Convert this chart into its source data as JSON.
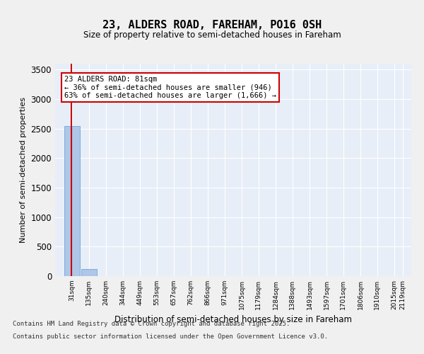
{
  "title_line1": "23, ALDERS ROAD, FAREHAM, PO16 0SH",
  "title_line2": "Size of property relative to semi-detached houses in Fareham",
  "xlabel": "Distribution of semi-detached houses by size in Fareham",
  "ylabel": "Number of semi-detached properties",
  "bins": [
    "31sqm",
    "135sqm",
    "240sqm",
    "344sqm",
    "449sqm",
    "553sqm",
    "657sqm",
    "762sqm",
    "866sqm",
    "971sqm",
    "1075sqm",
    "1179sqm",
    "1284sqm",
    "1388sqm",
    "1493sqm",
    "1597sqm",
    "1701sqm",
    "1806sqm",
    "1910sqm",
    "2015sqm",
    "2119sqm"
  ],
  "bin_edges": [
    31,
    135,
    240,
    344,
    449,
    553,
    657,
    762,
    866,
    971,
    1075,
    1179,
    1284,
    1388,
    1493,
    1597,
    1701,
    1806,
    1910,
    2015,
    2119
  ],
  "bar_heights": [
    2540,
    120,
    0,
    0,
    0,
    0,
    0,
    0,
    0,
    0,
    0,
    0,
    0,
    0,
    0,
    0,
    0,
    0,
    0,
    0
  ],
  "bar_color": "#aec6e8",
  "bar_edge_color": "#5a9fd4",
  "property_size": 81,
  "property_label": "23 ALDERS ROAD: 81sqm",
  "pct_smaller": 36,
  "n_smaller": 946,
  "pct_larger": 63,
  "n_larger": 1666,
  "annotation_box_color": "#ffffff",
  "annotation_box_edge_color": "#cc0000",
  "vline_color": "#cc0000",
  "ylim": [
    0,
    3600
  ],
  "yticks": [
    0,
    500,
    1000,
    1500,
    2000,
    2500,
    3000,
    3500
  ],
  "bg_color": "#e8eef7",
  "plot_bg_color": "#e8eef7",
  "grid_color": "#ffffff",
  "footer_line1": "Contains HM Land Registry data © Crown copyright and database right 2025.",
  "footer_line2": "Contains public sector information licensed under the Open Government Licence v3.0."
}
